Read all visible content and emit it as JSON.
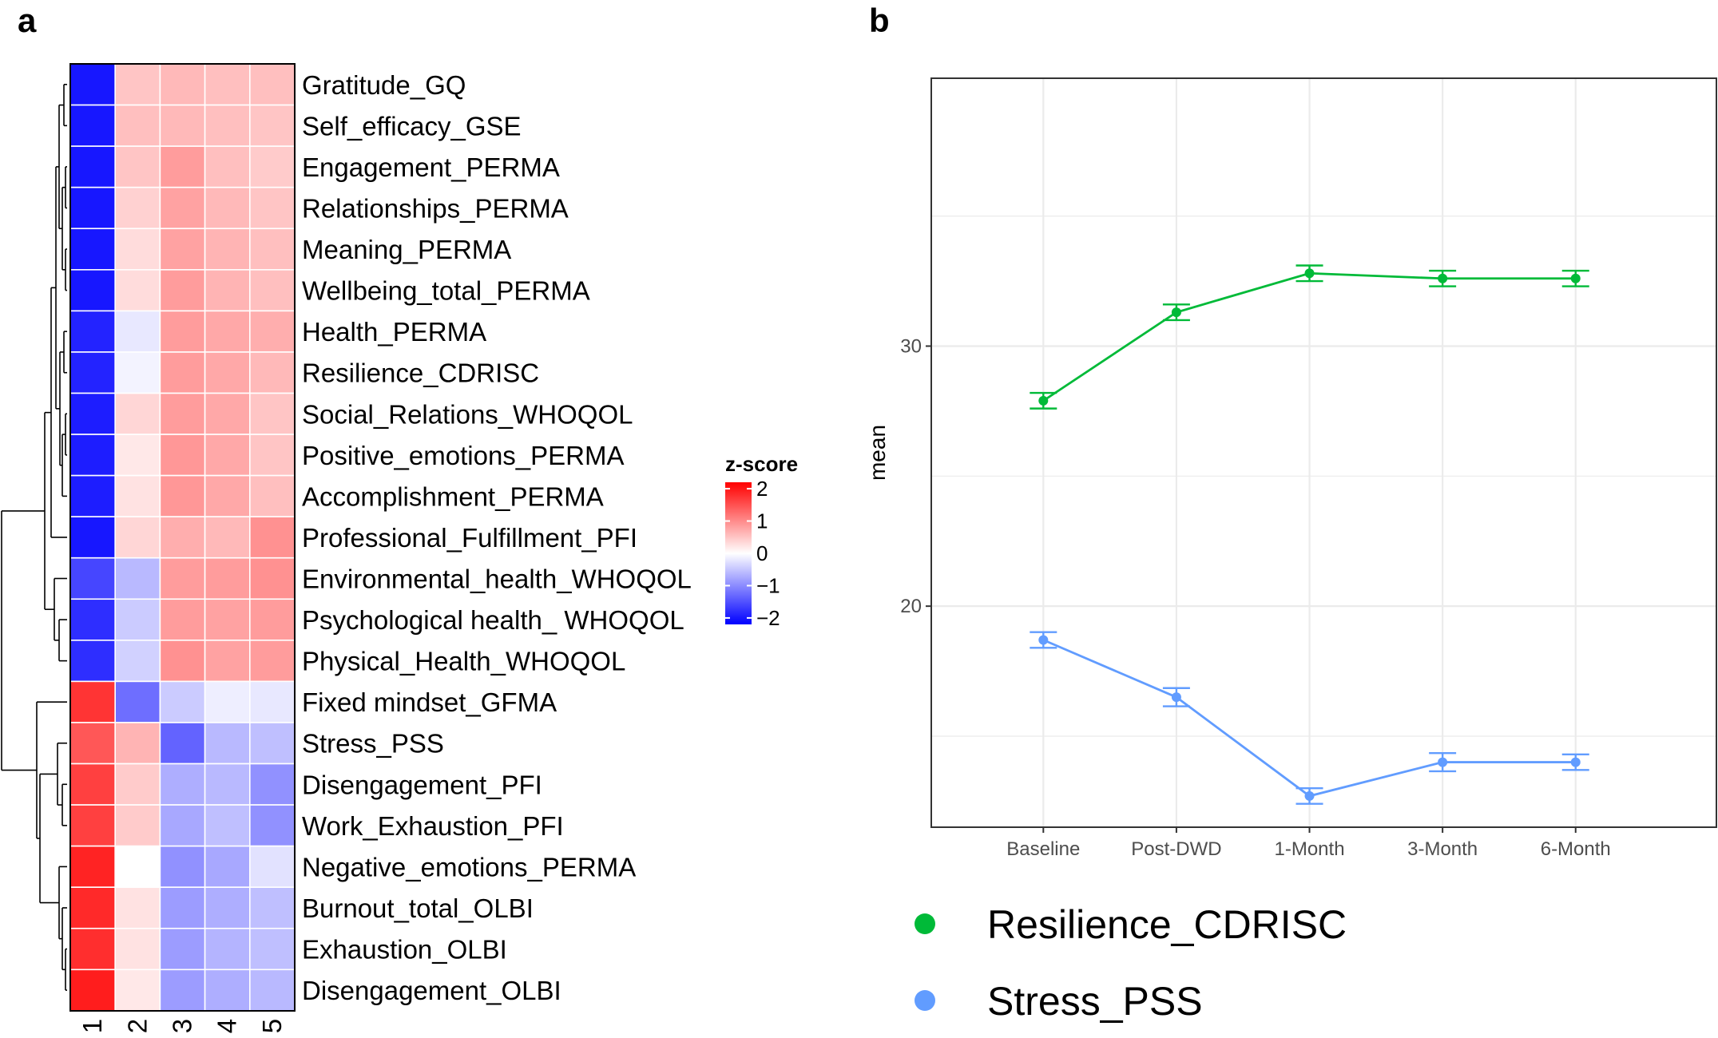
{
  "panels": {
    "a": "a",
    "b": "b"
  },
  "chart_data": [
    {
      "type": "heatmap",
      "panel": "a",
      "rows": [
        "Gratitude_GQ",
        "Self_efficacy_GSE",
        "Engagement_PERMA",
        "Relationships_PERMA",
        "Meaning_PERMA",
        "Wellbeing_total_PERMA",
        "Health_PERMA",
        "Resilience_CDRISC",
        "Social_Relations_WHOQOL",
        "Positive_emotions_PERMA",
        "Accomplishment_PERMA",
        "Professional_Fulfillment_PFI",
        "Environmental_health_WHOQOL",
        "Psychological health_ WHOQOL",
        "Physical_Health_WHOQOL",
        "Fixed mindset_GFMA",
        "Stress_PSS",
        "Disengagement_PFI",
        "Work_Exhaustion_PFI",
        "Negative_emotions_PERMA",
        "Burnout_total_OLBI",
        "Exhaustion_OLBI",
        "Disengagement_OLBI"
      ],
      "columns": [
        "1",
        "2",
        "3",
        "4",
        "5"
      ],
      "values": [
        [
          -2.0,
          0.5,
          0.6,
          0.55,
          0.55
        ],
        [
          -2.0,
          0.55,
          0.6,
          0.55,
          0.5
        ],
        [
          -2.0,
          0.5,
          0.85,
          0.55,
          0.45
        ],
        [
          -2.0,
          0.4,
          0.8,
          0.6,
          0.5
        ],
        [
          -2.0,
          0.3,
          0.8,
          0.65,
          0.55
        ],
        [
          -2.0,
          0.3,
          0.85,
          0.65,
          0.55
        ],
        [
          -1.9,
          -0.2,
          0.85,
          0.75,
          0.7
        ],
        [
          -1.9,
          -0.1,
          0.85,
          0.75,
          0.6
        ],
        [
          -1.95,
          0.35,
          0.85,
          0.75,
          0.5
        ],
        [
          -1.95,
          0.2,
          0.9,
          0.75,
          0.5
        ],
        [
          -1.95,
          0.25,
          0.9,
          0.75,
          0.55
        ],
        [
          -2.0,
          0.35,
          0.7,
          0.6,
          0.95
        ],
        [
          -1.6,
          -0.6,
          0.85,
          0.85,
          0.95
        ],
        [
          -1.8,
          -0.45,
          0.85,
          0.8,
          0.85
        ],
        [
          -1.8,
          -0.4,
          0.95,
          0.8,
          0.85
        ],
        [
          1.75,
          -1.25,
          -0.45,
          -0.15,
          -0.2
        ],
        [
          1.45,
          0.65,
          -1.35,
          -0.6,
          -0.55
        ],
        [
          1.65,
          0.45,
          -0.7,
          -0.6,
          -0.95
        ],
        [
          1.65,
          0.45,
          -0.75,
          -0.55,
          -0.95
        ],
        [
          1.9,
          0.0,
          -0.95,
          -0.75,
          -0.25
        ],
        [
          1.85,
          0.25,
          -0.85,
          -0.7,
          -0.55
        ],
        [
          1.8,
          0.25,
          -0.85,
          -0.65,
          -0.55
        ],
        [
          1.95,
          0.2,
          -0.85,
          -0.7,
          -0.6
        ]
      ],
      "color_scale": {
        "title": "z-score",
        "ticks": [
          "2",
          "1",
          "0",
          "−1",
          "−2"
        ],
        "tick_values": [
          2,
          1,
          0,
          -1,
          -2
        ],
        "low": "#0000ff",
        "mid": "#ffffff",
        "high": "#ff0000",
        "range": [
          -2.2,
          2.2
        ]
      }
    },
    {
      "type": "line",
      "panel": "b",
      "categories": [
        "Baseline",
        "Post-DWD",
        "1-Month",
        "3-Month",
        "6-Month"
      ],
      "ylabel": "mean",
      "xlabel": "",
      "ylim": [
        11.5,
        40.3
      ],
      "yticks": [
        20,
        30
      ],
      "grid": true,
      "legend_position": "bottom",
      "series": [
        {
          "name": "Resilience_CDRISC",
          "color": "#00ba38",
          "values": [
            27.9,
            31.3,
            32.8,
            32.6,
            32.6
          ],
          "error": [
            0.3,
            0.3,
            0.3,
            0.3,
            0.3
          ]
        },
        {
          "name": "Stress_PSS",
          "color": "#619cff",
          "values": [
            18.7,
            16.5,
            12.7,
            14.0,
            14.0
          ],
          "error": [
            0.3,
            0.35,
            0.3,
            0.35,
            0.3
          ]
        }
      ]
    }
  ]
}
